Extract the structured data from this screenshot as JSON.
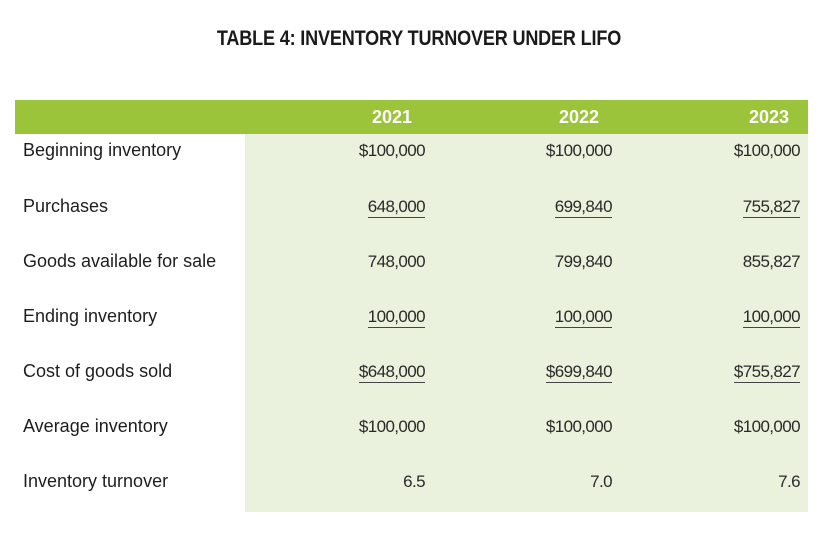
{
  "title": "TABLE 4: INVENTORY TURNOVER UNDER LIFO",
  "columns": [
    "2021",
    "2022",
    "2023"
  ],
  "rows": [
    {
      "label": "Beginning inventory",
      "values": [
        "$100,000",
        "$100,000",
        "$100,000"
      ],
      "underlined": false
    },
    {
      "label": "Purchases",
      "values": [
        "648,000",
        "699,840",
        "755,827"
      ],
      "underlined": true
    },
    {
      "label": "Goods available for sale",
      "values": [
        "748,000",
        "799,840",
        "855,827"
      ],
      "underlined": false
    },
    {
      "label": "Ending inventory",
      "values": [
        "100,000",
        "100,000",
        "100,000"
      ],
      "underlined": true
    },
    {
      "label": "Cost of goods sold",
      "values": [
        "$648,000",
        "$699,840",
        "$755,827"
      ],
      "underlined": true
    },
    {
      "label": "Average inventory",
      "values": [
        "$100,000",
        "$100,000",
        "$100,000"
      ],
      "underlined": false
    },
    {
      "label": "Inventory turnover",
      "values": [
        "6.5",
        "7.0",
        "7.6"
      ],
      "underlined": false
    }
  ],
  "colors": {
    "header_band": "#9cc43b",
    "body_band": "#eaf1dc",
    "header_text": "#ffffff"
  }
}
